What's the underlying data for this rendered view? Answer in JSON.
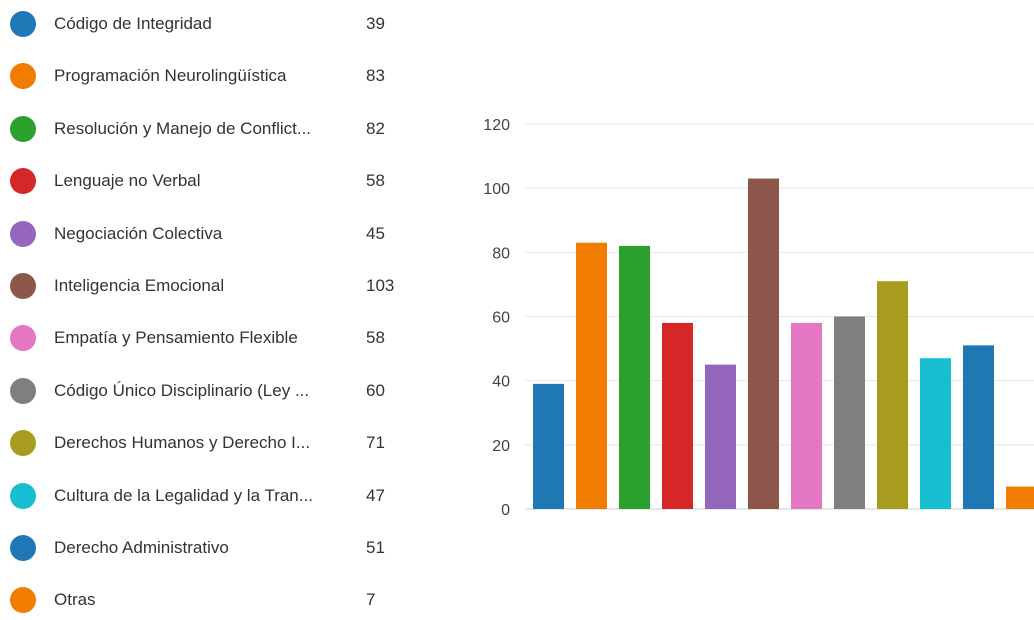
{
  "chart_data": {
    "type": "bar",
    "categories": [
      "Código de Integridad",
      "Programación Neurolingüística",
      "Resolución y Manejo de Conflict...",
      "Lenguaje no Verbal",
      "Negociación Colectiva",
      "Inteligencia Emocional",
      "Empatía y Pensamiento Flexible",
      "Código Único Disciplinario (Ley ...",
      "Derechos Humanos y Derecho I...",
      "Cultura de la Legalidad y la Tran...",
      "Derecho Administrativo",
      "Otras"
    ],
    "values": [
      39,
      83,
      82,
      58,
      45,
      103,
      58,
      60,
      71,
      47,
      51,
      7
    ],
    "colors": [
      "#1f77b4",
      "#f07d00",
      "#2ca02c",
      "#d62728",
      "#9467bd",
      "#8c564b",
      "#e377c2",
      "#7f7f7f",
      "#a89c1e",
      "#17becf",
      "#1f77b4",
      "#f07d00"
    ],
    "ylim": [
      0,
      120
    ],
    "yticks": [
      0,
      20,
      40,
      60,
      80,
      100,
      120
    ],
    "grid": true,
    "legend": "left"
  }
}
